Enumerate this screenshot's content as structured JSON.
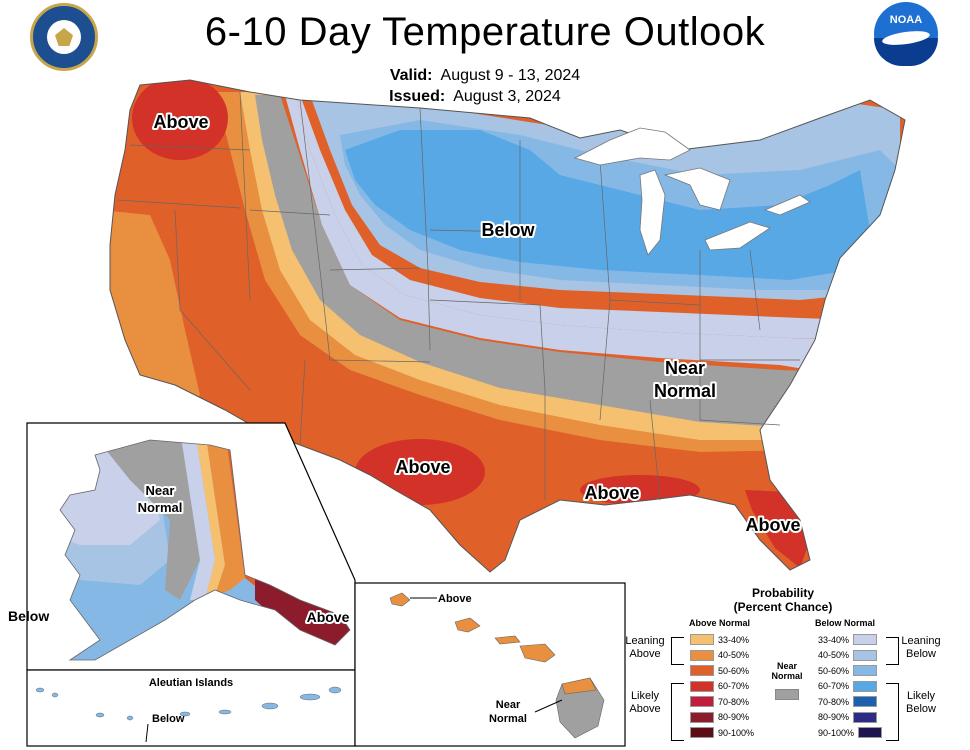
{
  "header": {
    "title": "6-10 Day Temperature Outlook",
    "valid_label": "Valid:",
    "valid_value": "August 9 - 13, 2024",
    "issued_label": "Issued:",
    "issued_value": "August 3, 2024",
    "left_logo": "department-of-commerce-seal",
    "right_logo": "noaa-logo"
  },
  "map": {
    "region_labels": {
      "pacific_nw": "Above",
      "north_central": "Below",
      "southeast_gray": "Near\nNormal",
      "texas": "Above",
      "gulf": "Above",
      "florida": "Above",
      "alaska_near_normal": "Near\nNormal",
      "alaska_below": "Below",
      "alaska_se": "Above",
      "hawaii_above": "Above",
      "hawaii_near_normal": "Near\nNormal",
      "aleutian_title": "Aleutian Islands",
      "aleutian_below": "Below"
    },
    "colors": {
      "above_33_40": "#f5c070",
      "above_40_50": "#e8903f",
      "above_50_60": "#e0602a",
      "above_60_70": "#d23228",
      "above_70_80": "#c01e3c",
      "above_80_90": "#8c1c2c",
      "above_90_100": "#5c0e14",
      "near_normal": "#a0a0a0",
      "below_33_40": "#c8d0ea",
      "below_40_50": "#a8c4e4",
      "below_50_60": "#86b8e6",
      "below_60_70": "#58a8e6",
      "below_70_80": "#1e60b0",
      "below_80_90": "#2c2c86",
      "below_90_100": "#1e1450"
    }
  },
  "legend": {
    "title_line1": "Probability",
    "title_line2": "(Percent Chance)",
    "above_head": "Above Normal",
    "below_head": "Below Normal",
    "near_head": "Near\nNormal",
    "leaning_above": "Leaning\nAbove",
    "likely_above": "Likely\nAbove",
    "leaning_below": "Leaning\nBelow",
    "likely_below": "Likely\nBelow",
    "above_items": [
      "33-40%",
      "40-50%",
      "50-60%",
      "60-70%",
      "70-80%",
      "80-90%",
      "90-100%"
    ],
    "below_items": [
      "33-40%",
      "40-50%",
      "50-60%",
      "60-70%",
      "70-80%",
      "80-90%",
      "90-100%"
    ]
  }
}
